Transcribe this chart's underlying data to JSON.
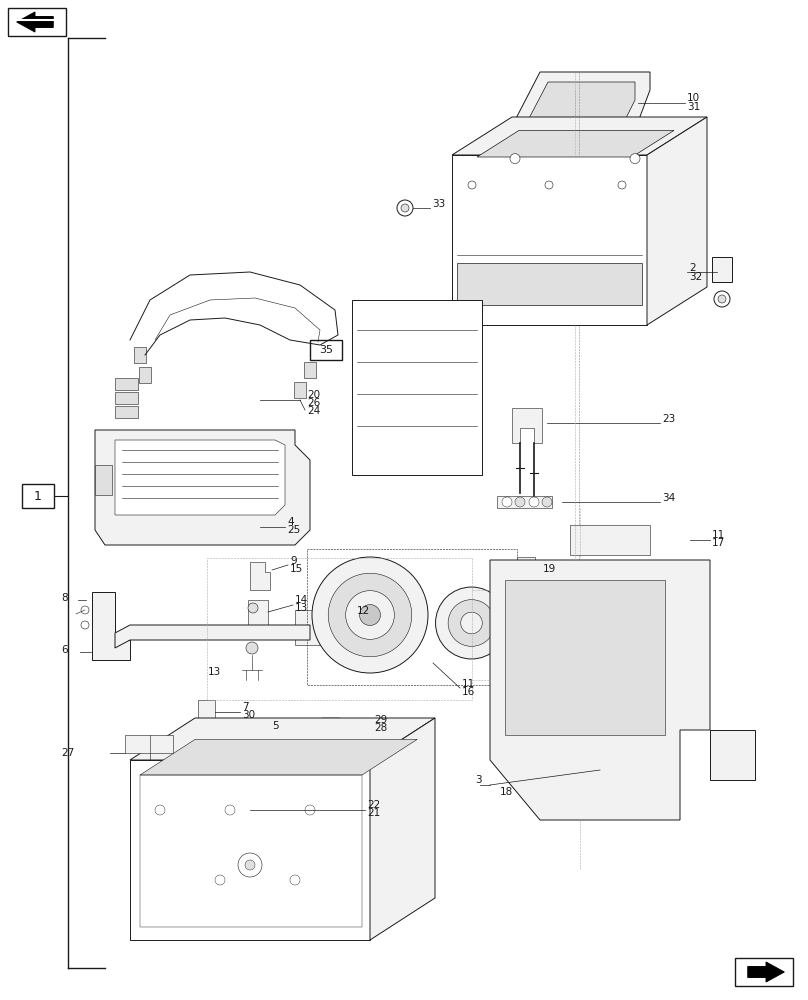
{
  "bg_color": "#ffffff",
  "line_color": "#1a1a1a",
  "fig_width": 8.08,
  "fig_height": 10.0,
  "dpi": 100,
  "lw_main": 0.7,
  "lw_thin": 0.4,
  "lw_border": 1.0,
  "gray_fill": "#f2f2f2",
  "gray_mid": "#e0e0e0",
  "gray_dark": "#c8c8c8",
  "label_fs": 7.5
}
